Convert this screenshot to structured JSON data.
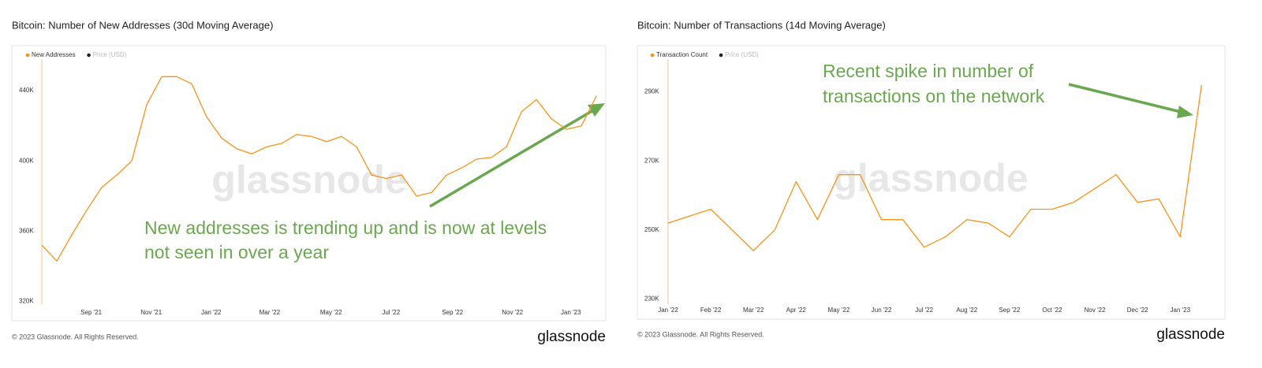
{
  "chart_data": [
    {
      "type": "line",
      "title": "Bitcoin: Number of New Addresses (30d Moving Average)",
      "series": [
        {
          "name": "New Addresses",
          "color": "#f7931a",
          "values": [
            352000,
            343000,
            358000,
            372000,
            385000,
            392000,
            400000,
            432000,
            448000,
            448000,
            444000,
            425000,
            413000,
            407000,
            404000,
            408000,
            410000,
            415000,
            414000,
            411000,
            414000,
            408000,
            392000,
            390000,
            392000,
            380000,
            382000,
            392000,
            396000,
            401000,
            402000,
            408000,
            428000,
            435000,
            424000,
            418000,
            420000,
            437000
          ]
        },
        {
          "name": "Price (USD)",
          "color": "#222222",
          "hidden": true
        }
      ],
      "xlim": [
        0,
        37.1
      ],
      "xticks": [
        {
          "value": 3.3,
          "label": "Sep '21"
        },
        {
          "value": 7.3,
          "label": "Nov '21"
        },
        {
          "value": 11.3,
          "label": "Jan '22"
        },
        {
          "value": 15.2,
          "label": "Mar '22"
        },
        {
          "value": 19.3,
          "label": "May '22"
        },
        {
          "value": 23.3,
          "label": "Jul '22"
        },
        {
          "value": 27.4,
          "label": "Sep '22"
        },
        {
          "value": 31.4,
          "label": "Nov '22"
        },
        {
          "value": 35.3,
          "label": "Jan '23"
        }
      ],
      "ylim": [
        318000,
        458000
      ],
      "yticks": [
        {
          "value": 320000,
          "label": "320K"
        },
        {
          "value": 360000,
          "label": "360K"
        },
        {
          "value": 400000,
          "label": "400K"
        },
        {
          "value": 440000,
          "label": "440K"
        }
      ],
      "grid": false,
      "annotations": [
        "New addresses is trending up and is now at levels",
        "not seen in over a year"
      ],
      "watermark": "glassnode",
      "footer": "© 2023 Glassnode. All Rights Reserved.",
      "logo": "glassnode"
    },
    {
      "type": "line",
      "title": "Bitcoin: Number of Transactions (14d Moving Average)",
      "series": [
        {
          "name": "Transaction Count",
          "color": "#f7931a",
          "values": [
            252000,
            254000,
            256000,
            250000,
            244000,
            250000,
            264000,
            253000,
            266000,
            266000,
            253000,
            253000,
            245000,
            248000,
            253000,
            252000,
            248000,
            256000,
            256000,
            258000,
            262000,
            266000,
            258000,
            259000,
            248000,
            292000
          ]
        },
        {
          "name": "Price (USD)",
          "color": "#222222",
          "hidden": true
        }
      ],
      "xlim": [
        0,
        25.8
      ],
      "xticks": [
        {
          "value": 0,
          "label": "Jan '22"
        },
        {
          "value": 2,
          "label": "Feb '22"
        },
        {
          "value": 4,
          "label": "Mar '22"
        },
        {
          "value": 6,
          "label": "Apr '22"
        },
        {
          "value": 8,
          "label": "May '22"
        },
        {
          "value": 10,
          "label": "Jun '22"
        },
        {
          "value": 12,
          "label": "Jul '22"
        },
        {
          "value": 14,
          "label": "Aug '22"
        },
        {
          "value": 16,
          "label": "Sep '22"
        },
        {
          "value": 18,
          "label": "Oct '22"
        },
        {
          "value": 20,
          "label": "Nov '22"
        },
        {
          "value": 22,
          "label": "Dec '22"
        },
        {
          "value": 24,
          "label": "Jan '23"
        }
      ],
      "ylim": [
        228500,
        299500
      ],
      "yticks": [
        {
          "value": 230000,
          "label": "230K"
        },
        {
          "value": 250000,
          "label": "250K"
        },
        {
          "value": 270000,
          "label": "270K"
        },
        {
          "value": 290000,
          "label": "290K"
        }
      ],
      "grid": false,
      "annotations": [
        "Recent spike in number of",
        "transactions on the network"
      ],
      "watermark": "glassnode",
      "footer": "© 2023 Glassnode. All Rights Reserved.",
      "logo": "glassnode"
    }
  ]
}
